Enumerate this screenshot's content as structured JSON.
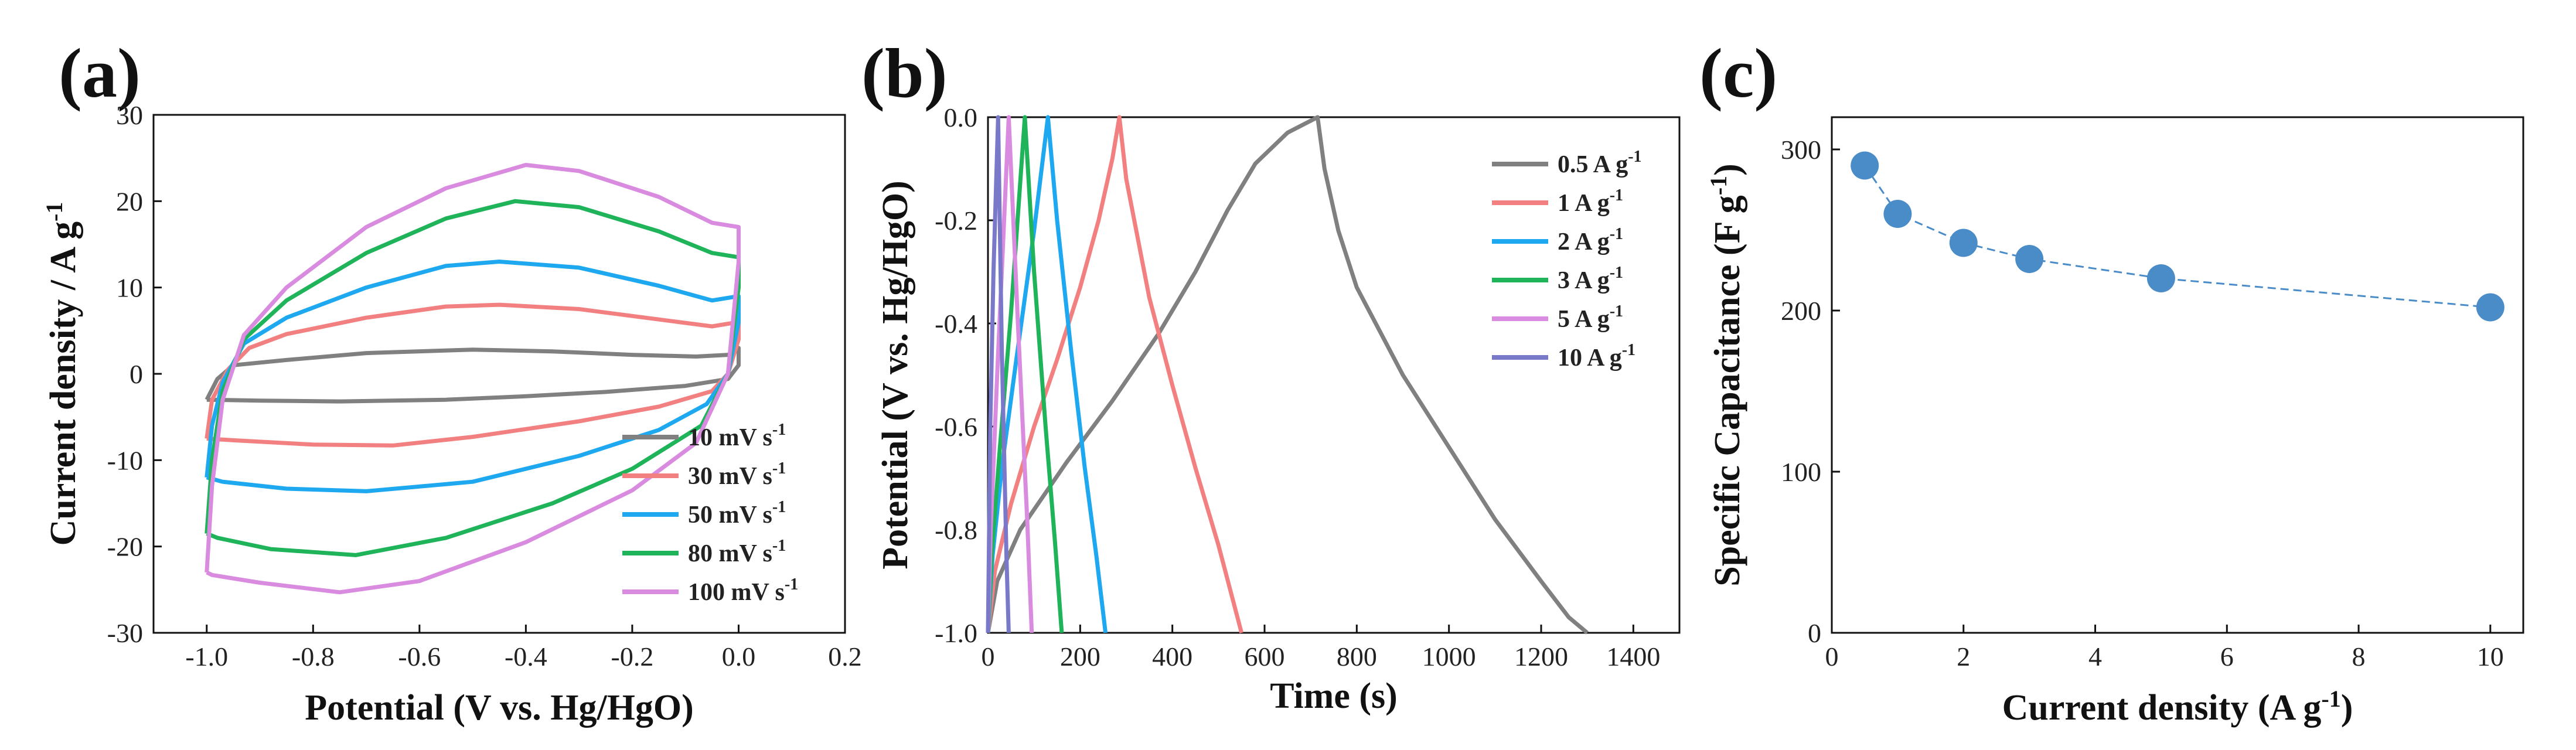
{
  "colors": {
    "gray": "#808080",
    "red": "#f28080",
    "blue": "#1ea8f0",
    "green": "#1fb35a",
    "pink": "#d98be0",
    "purple": "#7a78c8",
    "point": "#4a8cc8"
  },
  "chart_data": [
    {
      "panel": "(a)",
      "type": "line",
      "title": "",
      "xlabel": "Potential (V vs. Hg/HgO)",
      "ylabel": "Current density / A g",
      "ylabel_sup": "-1",
      "xlim": [
        -1.1,
        0.2
      ],
      "ylim": [
        -30,
        30
      ],
      "xticks": [
        -1.0,
        -0.8,
        -0.6,
        -0.4,
        -0.2,
        0.0,
        0.2
      ],
      "xtick_labels": [
        "-1.0",
        "-0.8",
        "-0.6",
        "-0.4",
        "-0.2",
        "0.0",
        "0.2"
      ],
      "yticks": [
        -30,
        -20,
        -10,
        0,
        10,
        20,
        30
      ],
      "ytick_labels": [
        "-30",
        "-20",
        "-10",
        "0",
        "10",
        "20",
        "30"
      ],
      "legend_position": "bottom-right",
      "series": [
        {
          "name": "10 mV s",
          "sup": "-1",
          "color": "#808080",
          "points": [
            [
              -1.0,
              -3
            ],
            [
              -0.98,
              -0.6
            ],
            [
              -0.95,
              1.0
            ],
            [
              -0.85,
              1.6
            ],
            [
              -0.7,
              2.4
            ],
            [
              -0.5,
              2.8
            ],
            [
              -0.35,
              2.6
            ],
            [
              -0.2,
              2.2
            ],
            [
              -0.08,
              2.0
            ],
            [
              -0.02,
              2.2
            ],
            [
              0.0,
              3.0
            ],
            [
              0.0,
              1.0
            ],
            [
              -0.02,
              -0.6
            ],
            [
              -0.1,
              -1.4
            ],
            [
              -0.25,
              -2.1
            ],
            [
              -0.4,
              -2.6
            ],
            [
              -0.55,
              -3.0
            ],
            [
              -0.75,
              -3.2
            ],
            [
              -0.9,
              -3.1
            ],
            [
              -1.0,
              -3.0
            ]
          ]
        },
        {
          "name": "30 mV s",
          "sup": "-1",
          "color": "#f28080",
          "points": [
            [
              -1.0,
              -7.5
            ],
            [
              -0.99,
              -3
            ],
            [
              -0.96,
              0.5
            ],
            [
              -0.92,
              3.0
            ],
            [
              -0.85,
              4.6
            ],
            [
              -0.7,
              6.5
            ],
            [
              -0.55,
              7.8
            ],
            [
              -0.45,
              8.0
            ],
            [
              -0.3,
              7.5
            ],
            [
              -0.15,
              6.3
            ],
            [
              -0.05,
              5.5
            ],
            [
              0.0,
              6.0
            ],
            [
              0.0,
              4.0
            ],
            [
              -0.02,
              0
            ],
            [
              -0.05,
              -2
            ],
            [
              -0.15,
              -3.8
            ],
            [
              -0.3,
              -5.5
            ],
            [
              -0.5,
              -7.3
            ],
            [
              -0.65,
              -8.3
            ],
            [
              -0.8,
              -8.2
            ],
            [
              -0.95,
              -7.7
            ],
            [
              -1.0,
              -7.5
            ]
          ]
        },
        {
          "name": "50 mV s",
          "sup": "-1",
          "color": "#1ea8f0",
          "points": [
            [
              -1.0,
              -12
            ],
            [
              -0.99,
              -6
            ],
            [
              -0.97,
              -1
            ],
            [
              -0.93,
              3.5
            ],
            [
              -0.85,
              6.5
            ],
            [
              -0.7,
              10
            ],
            [
              -0.55,
              12.5
            ],
            [
              -0.45,
              13
            ],
            [
              -0.3,
              12.3
            ],
            [
              -0.15,
              10.2
            ],
            [
              -0.05,
              8.5
            ],
            [
              0.0,
              9.0
            ],
            [
              0.0,
              6.0
            ],
            [
              -0.02,
              0
            ],
            [
              -0.06,
              -3.5
            ],
            [
              -0.15,
              -6.5
            ],
            [
              -0.3,
              -9.5
            ],
            [
              -0.5,
              -12.5
            ],
            [
              -0.7,
              -13.6
            ],
            [
              -0.85,
              -13.3
            ],
            [
              -0.97,
              -12.5
            ],
            [
              -1.0,
              -12
            ]
          ]
        },
        {
          "name": "80 mV s",
          "sup": "-1",
          "color": "#1fb35a",
          "points": [
            [
              -1.0,
              -18.5
            ],
            [
              -0.99,
              -10
            ],
            [
              -0.97,
              -2
            ],
            [
              -0.93,
              4
            ],
            [
              -0.85,
              8.5
            ],
            [
              -0.7,
              14
            ],
            [
              -0.55,
              18
            ],
            [
              -0.42,
              20
            ],
            [
              -0.3,
              19.3
            ],
            [
              -0.15,
              16.5
            ],
            [
              -0.05,
              14
            ],
            [
              0.0,
              13.5
            ],
            [
              0.0,
              10
            ],
            [
              -0.02,
              0
            ],
            [
              -0.07,
              -6
            ],
            [
              -0.2,
              -11
            ],
            [
              -0.35,
              -15
            ],
            [
              -0.55,
              -19
            ],
            [
              -0.72,
              -21
            ],
            [
              -0.88,
              -20.3
            ],
            [
              -0.98,
              -19
            ],
            [
              -1.0,
              -18.5
            ]
          ]
        },
        {
          "name": "100 mV s",
          "sup": "-1",
          "color": "#d98be0",
          "points": [
            [
              -1.0,
              -23
            ],
            [
              -0.99,
              -13
            ],
            [
              -0.97,
              -3
            ],
            [
              -0.93,
              4.5
            ],
            [
              -0.85,
              10
            ],
            [
              -0.7,
              17
            ],
            [
              -0.55,
              21.5
            ],
            [
              -0.4,
              24.2
            ],
            [
              -0.3,
              23.5
            ],
            [
              -0.15,
              20.5
            ],
            [
              -0.05,
              17.5
            ],
            [
              0.0,
              17.0
            ],
            [
              0.0,
              13
            ],
            [
              -0.02,
              0
            ],
            [
              -0.08,
              -8
            ],
            [
              -0.2,
              -13.5
            ],
            [
              -0.4,
              -19.5
            ],
            [
              -0.6,
              -24
            ],
            [
              -0.75,
              -25.3
            ],
            [
              -0.9,
              -24.2
            ],
            [
              -0.99,
              -23.3
            ],
            [
              -1.0,
              -23
            ]
          ]
        }
      ]
    },
    {
      "panel": "(b)",
      "type": "line",
      "title": "",
      "xlabel": "Time (s)",
      "ylabel": "Potential (V vs. Hg/HgO)",
      "xlim": [
        0,
        1500
      ],
      "ylim": [
        -1.0,
        0.0
      ],
      "xticks": [
        0,
        200,
        400,
        600,
        800,
        1000,
        1200,
        1400
      ],
      "xtick_labels": [
        "0",
        "200",
        "400",
        "600",
        "800",
        "1000",
        "1200",
        "1400"
      ],
      "yticks": [
        -1.0,
        -0.8,
        -0.6,
        -0.4,
        -0.2,
        0.0
      ],
      "ytick_labels": [
        "-1.0",
        "-0.8",
        "-0.6",
        "-0.4",
        "-0.2",
        "0.0"
      ],
      "legend_position": "top-right",
      "series": [
        {
          "name": "0.5 A g",
          "sup": "-1",
          "color": "#808080",
          "points": [
            [
              0,
              -1.0
            ],
            [
              20,
              -0.9
            ],
            [
              70,
              -0.8
            ],
            [
              170,
              -0.67
            ],
            [
              270,
              -0.55
            ],
            [
              370,
              -0.42
            ],
            [
              450,
              -0.3
            ],
            [
              520,
              -0.18
            ],
            [
              580,
              -0.09
            ],
            [
              650,
              -0.03
            ],
            [
              715,
              0.0
            ],
            [
              730,
              -0.1
            ],
            [
              760,
              -0.22
            ],
            [
              800,
              -0.33
            ],
            [
              900,
              -0.5
            ],
            [
              1000,
              -0.64
            ],
            [
              1100,
              -0.78
            ],
            [
              1200,
              -0.9
            ],
            [
              1260,
              -0.97
            ],
            [
              1300,
              -1.0
            ]
          ]
        },
        {
          "name": "1 A g",
          "sup": "-1",
          "color": "#f28080",
          "points": [
            [
              0,
              -1.0
            ],
            [
              15,
              -0.88
            ],
            [
              50,
              -0.75
            ],
            [
              100,
              -0.6
            ],
            [
              150,
              -0.47
            ],
            [
              200,
              -0.33
            ],
            [
              240,
              -0.2
            ],
            [
              270,
              -0.08
            ],
            [
              285,
              0.0
            ],
            [
              300,
              -0.12
            ],
            [
              350,
              -0.35
            ],
            [
              400,
              -0.52
            ],
            [
              450,
              -0.68
            ],
            [
              500,
              -0.83
            ],
            [
              550,
              -1.0
            ]
          ]
        },
        {
          "name": "2 A g",
          "sup": "-1",
          "color": "#1ea8f0",
          "points": [
            [
              0,
              -1.0
            ],
            [
              10,
              -0.85
            ],
            [
              30,
              -0.68
            ],
            [
              60,
              -0.48
            ],
            [
              100,
              -0.22
            ],
            [
              130,
              0.0
            ],
            [
              150,
              -0.2
            ],
            [
              180,
              -0.45
            ],
            [
              210,
              -0.68
            ],
            [
              235,
              -0.85
            ],
            [
              255,
              -1.0
            ]
          ]
        },
        {
          "name": "3 A g",
          "sup": "-1",
          "color": "#1fb35a",
          "points": [
            [
              0,
              -1.0
            ],
            [
              8,
              -0.85
            ],
            [
              25,
              -0.65
            ],
            [
              50,
              -0.38
            ],
            [
              80,
              0.0
            ],
            [
              100,
              -0.3
            ],
            [
              125,
              -0.6
            ],
            [
              145,
              -0.82
            ],
            [
              160,
              -1.0
            ]
          ]
        },
        {
          "name": "5 A g",
          "sup": "-1",
          "color": "#d98be0",
          "points": [
            [
              0,
              -1.0
            ],
            [
              6,
              -0.8
            ],
            [
              20,
              -0.5
            ],
            [
              45,
              0.0
            ],
            [
              65,
              -0.4
            ],
            [
              85,
              -0.78
            ],
            [
              95,
              -1.0
            ]
          ]
        },
        {
          "name": "10 A g",
          "sup": "-1",
          "color": "#7a78c8",
          "points": [
            [
              0,
              -1.0
            ],
            [
              5,
              -0.6
            ],
            [
              12,
              -0.3
            ],
            [
              22,
              0.0
            ],
            [
              30,
              -0.45
            ],
            [
              40,
              -0.85
            ],
            [
              45,
              -1.0
            ]
          ]
        }
      ]
    },
    {
      "panel": "(c)",
      "type": "scatter",
      "title": "",
      "xlabel": "Current density (A g",
      "xlabel_sup": "-1",
      "xlabel_end": ")",
      "ylabel": "Specific Capacitance (F g",
      "ylabel_sup": "-1",
      "ylabel_end": ")",
      "xlim": [
        0,
        10.5
      ],
      "ylim": [
        0,
        320
      ],
      "xticks": [
        0,
        2,
        4,
        6,
        8,
        10
      ],
      "xtick_labels": [
        "0",
        "2",
        "4",
        "6",
        "8",
        "10"
      ],
      "yticks": [
        0,
        100,
        200,
        300
      ],
      "ytick_labels": [
        "0",
        "100",
        "200",
        "300"
      ],
      "x": [
        0.5,
        1,
        2,
        3,
        5,
        10
      ],
      "y": [
        290,
        260,
        242,
        232,
        220,
        202
      ],
      "color": "#4a8cc8"
    }
  ]
}
